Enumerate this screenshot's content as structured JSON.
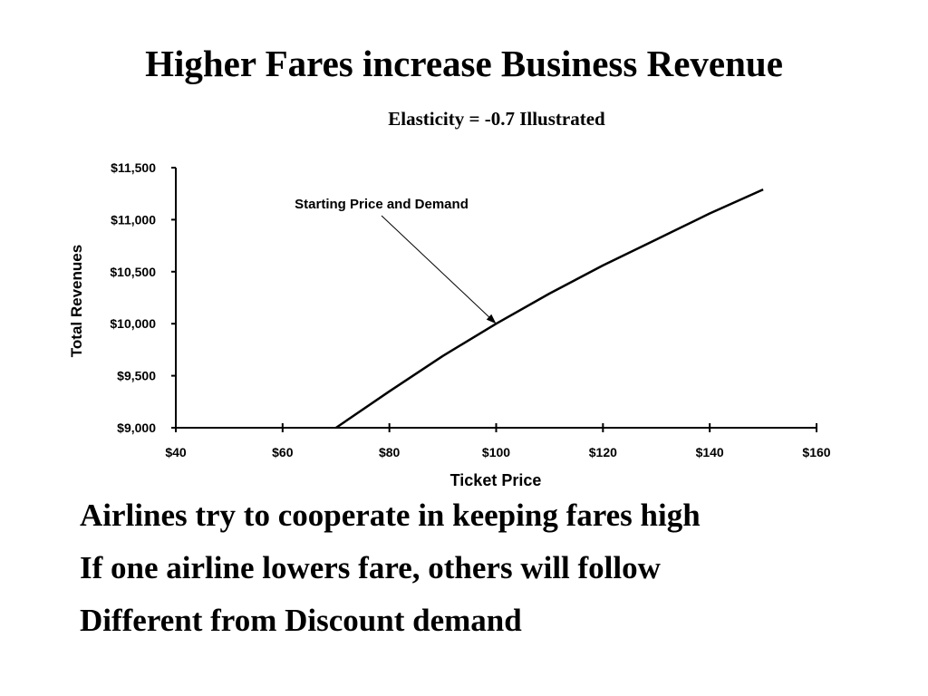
{
  "slide": {
    "title": "Higher Fares increase Business Revenue",
    "bullets": [
      "Airlines try to cooperate in keeping fares high",
      "If one airline lowers fare, others will follow",
      "Different from Discount demand"
    ]
  },
  "chart_data": {
    "type": "line",
    "title": "Elasticity = -0.7 Illustrated",
    "xlabel": "Ticket Price",
    "ylabel": "Total Revenues",
    "xlim": [
      40,
      160
    ],
    "ylim": [
      9000,
      11500
    ],
    "x_ticks": [
      "$40",
      "$60",
      "$80",
      "$100",
      "$120",
      "$140",
      "$160"
    ],
    "y_ticks": [
      "$9,000",
      "$9,500",
      "$10,000",
      "$10,500",
      "$11,000",
      "$11,500"
    ],
    "x_tick_values": [
      40,
      60,
      80,
      100,
      120,
      140,
      160
    ],
    "y_tick_values": [
      9000,
      9500,
      10000,
      10500,
      11000,
      11500
    ],
    "grid": false,
    "legend": null,
    "series": [
      {
        "x": [
          70,
          80,
          90,
          100,
          110,
          120,
          130,
          140,
          150
        ],
        "values": [
          9000,
          9350,
          9690,
          10000,
          10290,
          10560,
          10810,
          11060,
          11290
        ]
      }
    ],
    "annotations": [
      {
        "text": "Starting Price and Demand",
        "x": 100,
        "y": 10000
      }
    ],
    "colors": {
      "line": "#000000",
      "axis": "#000000"
    }
  }
}
